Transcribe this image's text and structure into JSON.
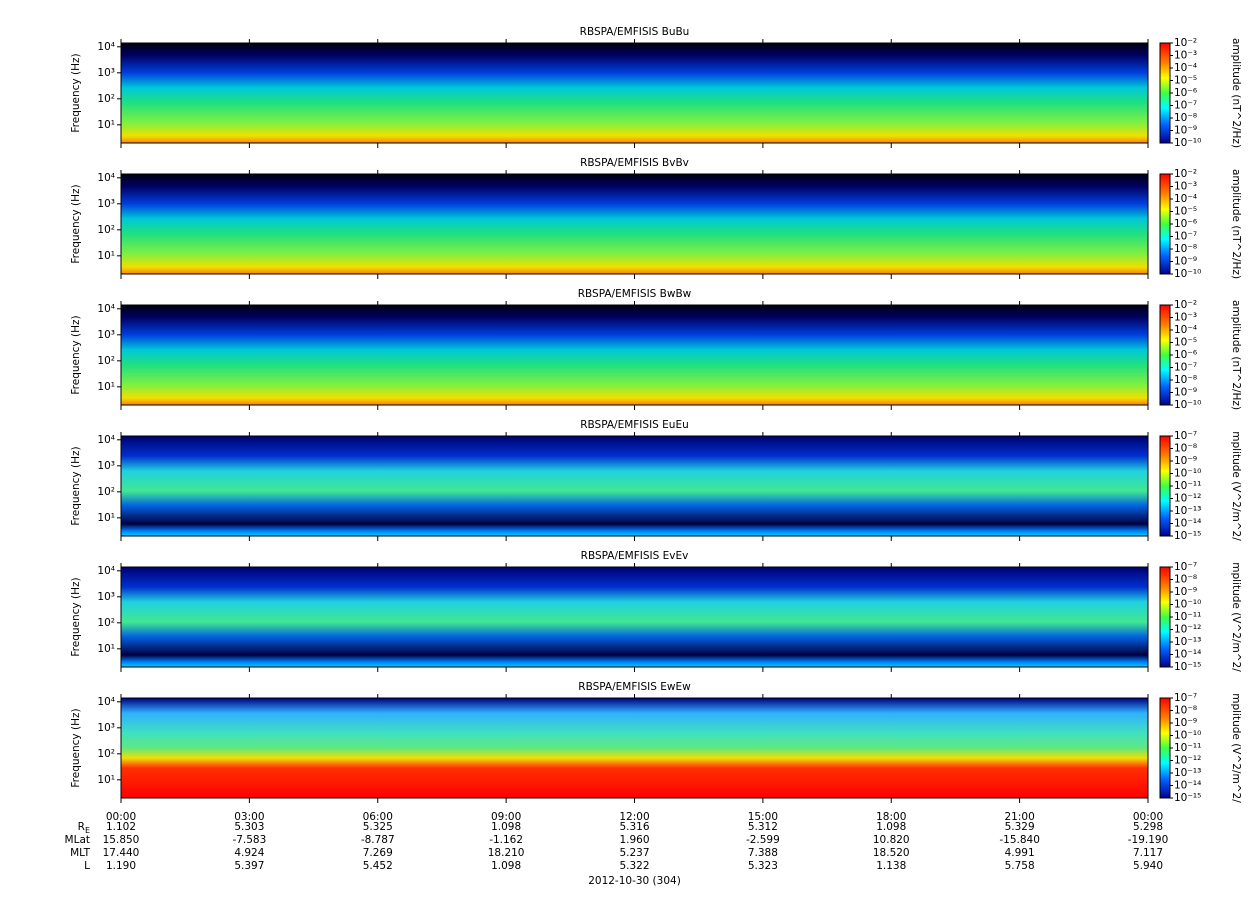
{
  "chart_data": [
    {
      "type": "spectrogram",
      "title": "RBSPA/EMFISIS  BuBu",
      "ylabel": "Frequency (Hz)",
      "log_y": true,
      "ylim": [
        2,
        14000
      ],
      "yticks": [
        {
          "value": 10,
          "label": "10¹"
        },
        {
          "value": 100,
          "label": "10²"
        },
        {
          "value": 1000,
          "label": "10³"
        },
        {
          "value": 10000,
          "label": "10⁴"
        }
      ],
      "xlim": [
        0,
        24
      ],
      "colorbar": {
        "label": "amplitude (nT^2/Hz)",
        "log": true,
        "lim": [
          1e-10,
          0.01
        ],
        "ticks": [
          {
            "value": 0.01,
            "label": "10⁻²"
          },
          {
            "value": 0.001,
            "label": "10⁻³"
          },
          {
            "value": 0.0001,
            "label": "10⁻⁴"
          },
          {
            "value": 1e-05,
            "label": "10⁻⁵"
          },
          {
            "value": 1e-06,
            "label": "10⁻⁶"
          },
          {
            "value": 1e-07,
            "label": "10⁻⁷"
          },
          {
            "value": 1e-08,
            "label": "10⁻⁸"
          },
          {
            "value": 1e-09,
            "label": "10⁻⁹"
          },
          {
            "value": 1e-10,
            "label": "10⁻¹⁰"
          }
        ]
      }
    },
    {
      "type": "spectrogram",
      "title": "RBSPA/EMFISIS  BvBv",
      "ylabel": "Frequency (Hz)",
      "log_y": true,
      "ylim": [
        2,
        14000
      ],
      "yticks": [
        {
          "value": 10,
          "label": "10¹"
        },
        {
          "value": 100,
          "label": "10²"
        },
        {
          "value": 1000,
          "label": "10³"
        },
        {
          "value": 10000,
          "label": "10⁴"
        }
      ],
      "xlim": [
        0,
        24
      ],
      "colorbar": {
        "label": "amplitude (nT^2/Hz)",
        "log": true,
        "lim": [
          1e-10,
          0.01
        ],
        "ticks": [
          {
            "value": 0.01,
            "label": "10⁻²"
          },
          {
            "value": 0.001,
            "label": "10⁻³"
          },
          {
            "value": 0.0001,
            "label": "10⁻⁴"
          },
          {
            "value": 1e-05,
            "label": "10⁻⁵"
          },
          {
            "value": 1e-06,
            "label": "10⁻⁶"
          },
          {
            "value": 1e-07,
            "label": "10⁻⁷"
          },
          {
            "value": 1e-08,
            "label": "10⁻⁸"
          },
          {
            "value": 1e-09,
            "label": "10⁻⁹"
          },
          {
            "value": 1e-10,
            "label": "10⁻¹⁰"
          }
        ]
      }
    },
    {
      "type": "spectrogram",
      "title": "RBSPA/EMFISIS  BwBw",
      "ylabel": "Frequency (Hz)",
      "log_y": true,
      "ylim": [
        2,
        14000
      ],
      "yticks": [
        {
          "value": 10,
          "label": "10¹"
        },
        {
          "value": 100,
          "label": "10²"
        },
        {
          "value": 1000,
          "label": "10³"
        },
        {
          "value": 10000,
          "label": "10⁴"
        }
      ],
      "xlim": [
        0,
        24
      ],
      "colorbar": {
        "label": "amplitude (nT^2/Hz)",
        "log": true,
        "lim": [
          1e-10,
          0.01
        ],
        "ticks": [
          {
            "value": 0.01,
            "label": "10⁻²"
          },
          {
            "value": 0.001,
            "label": "10⁻³"
          },
          {
            "value": 0.0001,
            "label": "10⁻⁴"
          },
          {
            "value": 1e-05,
            "label": "10⁻⁵"
          },
          {
            "value": 1e-06,
            "label": "10⁻⁶"
          },
          {
            "value": 1e-07,
            "label": "10⁻⁷"
          },
          {
            "value": 1e-08,
            "label": "10⁻⁸"
          },
          {
            "value": 1e-09,
            "label": "10⁻⁹"
          },
          {
            "value": 1e-10,
            "label": "10⁻¹⁰"
          }
        ]
      }
    },
    {
      "type": "spectrogram",
      "title": "RBSPA/EMFISIS  EuEu",
      "ylabel": "Frequency (Hz)",
      "log_y": true,
      "ylim": [
        2,
        14000
      ],
      "yticks": [
        {
          "value": 10,
          "label": "10¹"
        },
        {
          "value": 100,
          "label": "10²"
        },
        {
          "value": 1000,
          "label": "10³"
        },
        {
          "value": 10000,
          "label": "10⁴"
        }
      ],
      "xlim": [
        0,
        24
      ],
      "colorbar": {
        "label": "mplitude (V^2/m^2/",
        "log": true,
        "lim": [
          1e-15,
          1e-07
        ],
        "ticks": [
          {
            "value": 1e-07,
            "label": "10⁻⁷"
          },
          {
            "value": 1e-08,
            "label": "10⁻⁸"
          },
          {
            "value": 1e-09,
            "label": "10⁻⁹"
          },
          {
            "value": 1e-10,
            "label": "10⁻¹⁰"
          },
          {
            "value": 1e-11,
            "label": "10⁻¹¹"
          },
          {
            "value": 1e-12,
            "label": "10⁻¹²"
          },
          {
            "value": 1e-13,
            "label": "10⁻¹³"
          },
          {
            "value": 1e-14,
            "label": "10⁻¹⁴"
          },
          {
            "value": 1e-15,
            "label": "10⁻¹⁵"
          }
        ]
      }
    },
    {
      "type": "spectrogram",
      "title": "RBSPA/EMFISIS  EvEv",
      "ylabel": "Frequency (Hz)",
      "log_y": true,
      "ylim": [
        2,
        14000
      ],
      "yticks": [
        {
          "value": 10,
          "label": "10¹"
        },
        {
          "value": 100,
          "label": "10²"
        },
        {
          "value": 1000,
          "label": "10³"
        },
        {
          "value": 10000,
          "label": "10⁴"
        }
      ],
      "xlim": [
        0,
        24
      ],
      "colorbar": {
        "label": "mplitude (V^2/m^2/",
        "log": true,
        "lim": [
          1e-15,
          1e-07
        ],
        "ticks": [
          {
            "value": 1e-07,
            "label": "10⁻⁷"
          },
          {
            "value": 1e-08,
            "label": "10⁻⁸"
          },
          {
            "value": 1e-09,
            "label": "10⁻⁹"
          },
          {
            "value": 1e-10,
            "label": "10⁻¹⁰"
          },
          {
            "value": 1e-11,
            "label": "10⁻¹¹"
          },
          {
            "value": 1e-12,
            "label": "10⁻¹²"
          },
          {
            "value": 1e-13,
            "label": "10⁻¹³"
          },
          {
            "value": 1e-14,
            "label": "10⁻¹⁴"
          },
          {
            "value": 1e-15,
            "label": "10⁻¹⁵"
          }
        ]
      }
    },
    {
      "type": "spectrogram",
      "title": "RBSPA/EMFISIS  EwEw",
      "ylabel": "Frequency (Hz)",
      "log_y": true,
      "ylim": [
        2,
        14000
      ],
      "yticks": [
        {
          "value": 10,
          "label": "10¹"
        },
        {
          "value": 100,
          "label": "10²"
        },
        {
          "value": 1000,
          "label": "10³"
        },
        {
          "value": 10000,
          "label": "10⁴"
        }
      ],
      "xlim": [
        0,
        24
      ],
      "xticks": [
        {
          "value": 0,
          "label": "00:00"
        },
        {
          "value": 3,
          "label": "03:00"
        },
        {
          "value": 6,
          "label": "06:00"
        },
        {
          "value": 9,
          "label": "09:00"
        },
        {
          "value": 12,
          "label": "12:00"
        },
        {
          "value": 15,
          "label": "15:00"
        },
        {
          "value": 18,
          "label": "18:00"
        },
        {
          "value": 21,
          "label": "21:00"
        },
        {
          "value": 24,
          "label": "00:00"
        }
      ],
      "colorbar": {
        "label": "mplitude (V^2/m^2/",
        "log": true,
        "lim": [
          1e-15,
          1e-07
        ],
        "ticks": [
          {
            "value": 1e-07,
            "label": "10⁻⁷"
          },
          {
            "value": 1e-08,
            "label": "10⁻⁸"
          },
          {
            "value": 1e-09,
            "label": "10⁻⁹"
          },
          {
            "value": 1e-10,
            "label": "10⁻¹⁰"
          },
          {
            "value": 1e-11,
            "label": "10⁻¹¹"
          },
          {
            "value": 1e-12,
            "label": "10⁻¹²"
          },
          {
            "value": 1e-13,
            "label": "10⁻¹³"
          },
          {
            "value": 1e-14,
            "label": "10⁻¹⁴"
          },
          {
            "value": 1e-15,
            "label": "10⁻¹⁵"
          }
        ]
      }
    }
  ],
  "ephemeris": {
    "rows": [
      {
        "name": "R",
        "sub": "E",
        "values": [
          "1.102",
          "5.303",
          "5.325",
          "1.098",
          "5.316",
          "5.312",
          "1.098",
          "5.329",
          "5.298"
        ]
      },
      {
        "name": "MLat",
        "values": [
          "15.850",
          "-7.583",
          "-8.787",
          "-1.162",
          "1.960",
          "-2.599",
          "10.820",
          "-15.840",
          "-19.190"
        ]
      },
      {
        "name": "MLT",
        "values": [
          "17.440",
          "4.924",
          "7.269",
          "18.210",
          "5.237",
          "7.388",
          "18.520",
          "4.991",
          "7.117"
        ]
      },
      {
        "name": "L",
        "values": [
          "1.190",
          "5.397",
          "5.452",
          "1.098",
          "5.322",
          "5.323",
          "1.138",
          "5.758",
          "5.940"
        ]
      }
    ],
    "date": "2012-10-30 (304)"
  }
}
